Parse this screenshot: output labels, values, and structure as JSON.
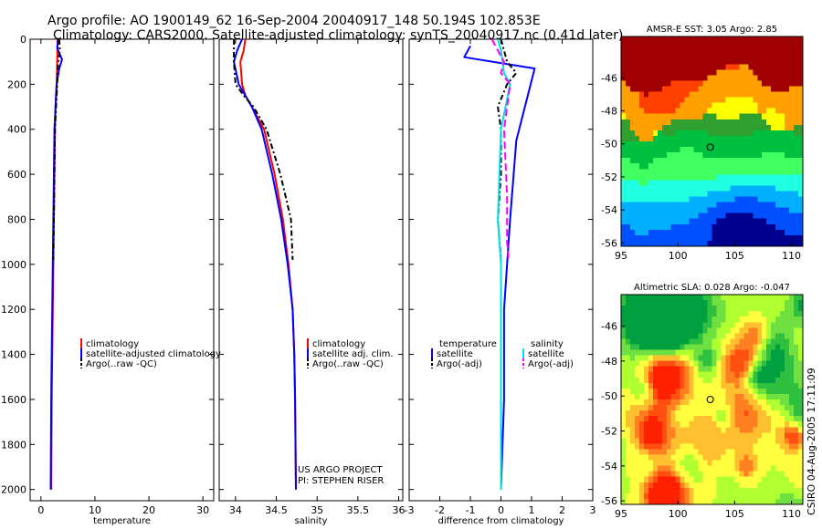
{
  "header": {
    "title_line1": "Argo profile: AO 1900149_62 16-Sep-2004 20040917_148 50.194S 102.853E",
    "title_line2": "Climatology: CARS2000. Satellite-adjusted climatology: synTS_20040917.nc (0.41d later)"
  },
  "footer": {
    "project": "US ARGO PROJECT",
    "pi": "PI: STEPHEN RISER",
    "stamp": "CSIRO 04-Aug-2005 17:11:09"
  },
  "colors": {
    "climatology": "#ff0000",
    "satellite": "#0000ff",
    "argo": "#000000",
    "salinity_satellite": "#00e0e0",
    "salinity_argo": "#ff00ff"
  },
  "chart_data": [
    {
      "type": "line",
      "xlabel": "temperature",
      "xticks": [
        0,
        10,
        20,
        30
      ],
      "xlim": [
        -2,
        32
      ],
      "yticks": [
        0,
        200,
        400,
        600,
        800,
        1000,
        1200,
        1400,
        1600,
        1800,
        2000
      ],
      "ylim": [
        2050,
        0
      ],
      "legend_position": "center-right",
      "series": [
        {
          "name": "climatology",
          "color": "#ff0000",
          "dash": "solid",
          "x": [
            3.1,
            3.0,
            2.9,
            2.7,
            2.6,
            2.5,
            2.4,
            2.3,
            2.2,
            2.1,
            2.0,
            1.9
          ],
          "y": [
            0,
            100,
            200,
            300,
            400,
            600,
            800,
            1000,
            1200,
            1400,
            1600,
            2000
          ]
        },
        {
          "name": "satellite-adjusted climatology",
          "color": "#0000ff",
          "dash": "solid",
          "x": [
            3.2,
            3.0,
            3.9,
            3.4,
            2.9,
            2.7,
            2.5,
            2.4,
            2.3,
            2.2,
            2.1,
            2.0,
            1.9,
            1.8
          ],
          "y": [
            0,
            40,
            90,
            130,
            200,
            300,
            400,
            600,
            800,
            1000,
            1200,
            1400,
            1600,
            2000
          ]
        },
        {
          "name": "Argo(..raw -QC)",
          "color": "#000000",
          "dash": "6,3,2,3",
          "x": [
            3.4,
            3.5,
            3.2,
            3.0,
            2.8,
            2.6,
            2.5,
            2.4,
            2.3
          ],
          "y": [
            0,
            50,
            100,
            200,
            300,
            400,
            600,
            800,
            980
          ]
        }
      ]
    },
    {
      "type": "line",
      "xlabel": "salinity",
      "xticks": [
        34,
        34.5,
        35,
        35.5,
        36
      ],
      "xlim": [
        33.8,
        36.05
      ],
      "yticks": [
        0,
        200,
        400,
        600,
        800,
        1000,
        1200,
        1400,
        1600,
        1800,
        2000
      ],
      "ylim": [
        2050,
        0
      ],
      "legend_position": "center-right",
      "series": [
        {
          "name": "climatology",
          "color": "#ff0000",
          "dash": "solid",
          "x": [
            34.12,
            34.1,
            34.06,
            34.08,
            34.12,
            34.2,
            34.35,
            34.48,
            34.58,
            34.65,
            34.7,
            34.72,
            34.73,
            34.74
          ],
          "y": [
            0,
            50,
            100,
            200,
            250,
            300,
            400,
            600,
            800,
            1000,
            1200,
            1400,
            1600,
            2000
          ]
        },
        {
          "name": "satellite adj. clim.",
          "color": "#0000ff",
          "dash": "solid",
          "x": [
            34.08,
            34.02,
            33.98,
            34.04,
            34.12,
            34.2,
            34.32,
            34.45,
            34.56,
            34.64,
            34.7,
            34.72,
            34.73,
            34.74
          ],
          "y": [
            0,
            50,
            100,
            200,
            250,
            300,
            400,
            600,
            800,
            1000,
            1200,
            1400,
            1600,
            2000
          ]
        },
        {
          "name": "Argo(..raw -QC)",
          "color": "#000000",
          "dash": "6,3,2,3",
          "x": [
            33.98,
            33.98,
            34.0,
            34.1,
            34.22,
            34.38,
            34.55,
            34.68,
            34.7
          ],
          "y": [
            0,
            100,
            200,
            250,
            300,
            400,
            600,
            800,
            980
          ]
        }
      ]
    },
    {
      "type": "line",
      "xlabel": "difference from climatology",
      "xticks": [
        -3,
        -2,
        -1,
        0,
        1,
        2,
        3
      ],
      "xlim": [
        -3,
        3
      ],
      "yticks": [
        0,
        200,
        400,
        600,
        800,
        1000,
        1200,
        1400,
        1600,
        1800,
        2000
      ],
      "ylim": [
        2050,
        0
      ],
      "legend_position": "center",
      "legend_headers": {
        "left": "temperature",
        "right": "salinity"
      },
      "series": [
        {
          "name": "satellite",
          "group": "temperature",
          "color": "#0000ff",
          "dash": "solid",
          "x": [
            -1.0,
            -1.2,
            1.1,
            0.5,
            0.3,
            0.1,
            0.1,
            0.0
          ],
          "y": [
            30,
            80,
            130,
            450,
            800,
            1200,
            1600,
            2000
          ]
        },
        {
          "name": "Argo(-adj)",
          "group": "temperature",
          "color": "#000000",
          "dash": "6,3,2,3",
          "x": [
            0.0,
            0.1,
            0.2,
            0.5,
            0.2,
            -0.1,
            0.0,
            0.0,
            -0.1,
            0.0
          ],
          "y": [
            0,
            50,
            100,
            150,
            200,
            300,
            400,
            600,
            800,
            980
          ]
        },
        {
          "name": "satellite",
          "group": "salinity",
          "color": "#00e0e0",
          "dash": "solid",
          "x": [
            -0.1,
            0.0,
            0.1,
            0.3,
            0.0,
            -0.1,
            0.0,
            0.0,
            0.0
          ],
          "y": [
            0,
            50,
            150,
            200,
            400,
            800,
            1000,
            1600,
            2000
          ]
        },
        {
          "name": "Argo(-adj)",
          "group": "salinity",
          "color": "#ff00ff",
          "dash": "8,4",
          "x": [
            -0.3,
            -0.1,
            0.1,
            0.0,
            0.3,
            0.1,
            0.2,
            0.2,
            0.25
          ],
          "y": [
            0,
            50,
            100,
            150,
            200,
            400,
            700,
            900,
            980
          ]
        }
      ]
    },
    {
      "type": "heatmap",
      "title": "AMSR-E SST: 3.05 Argo: 2.85",
      "xticks": [
        95,
        100,
        105,
        110
      ],
      "xlim": [
        95,
        111
      ],
      "yticks": [
        -46,
        -48,
        -50,
        -52,
        -54,
        -56
      ],
      "ylim": [
        -56.2,
        -43.5
      ],
      "marker": {
        "lon": 102.85,
        "lat": -50.2
      },
      "palette": [
        "#00008f",
        "#0050ff",
        "#00b0ff",
        "#20ffe0",
        "#40ff60",
        "#00c040",
        "#30a030",
        "#ffff00",
        "#ffa000",
        "#ff4000",
        "#a00000"
      ]
    },
    {
      "type": "heatmap",
      "title": "Altimetric SLA: 0.028 Argo: -0.047",
      "xticks": [
        95,
        100,
        105,
        110
      ],
      "xlim": [
        95,
        111
      ],
      "yticks": [
        -46,
        -48,
        -50,
        -52,
        -54,
        -56
      ],
      "ylim": [
        -56.2,
        -44.2
      ],
      "marker": {
        "lon": 102.85,
        "lat": -50.2
      },
      "palette": [
        "#00a040",
        "#30c040",
        "#70e040",
        "#b0ff30",
        "#ffff40",
        "#ffc030",
        "#ff8020",
        "#ff5010",
        "#ff2000"
      ]
    }
  ]
}
